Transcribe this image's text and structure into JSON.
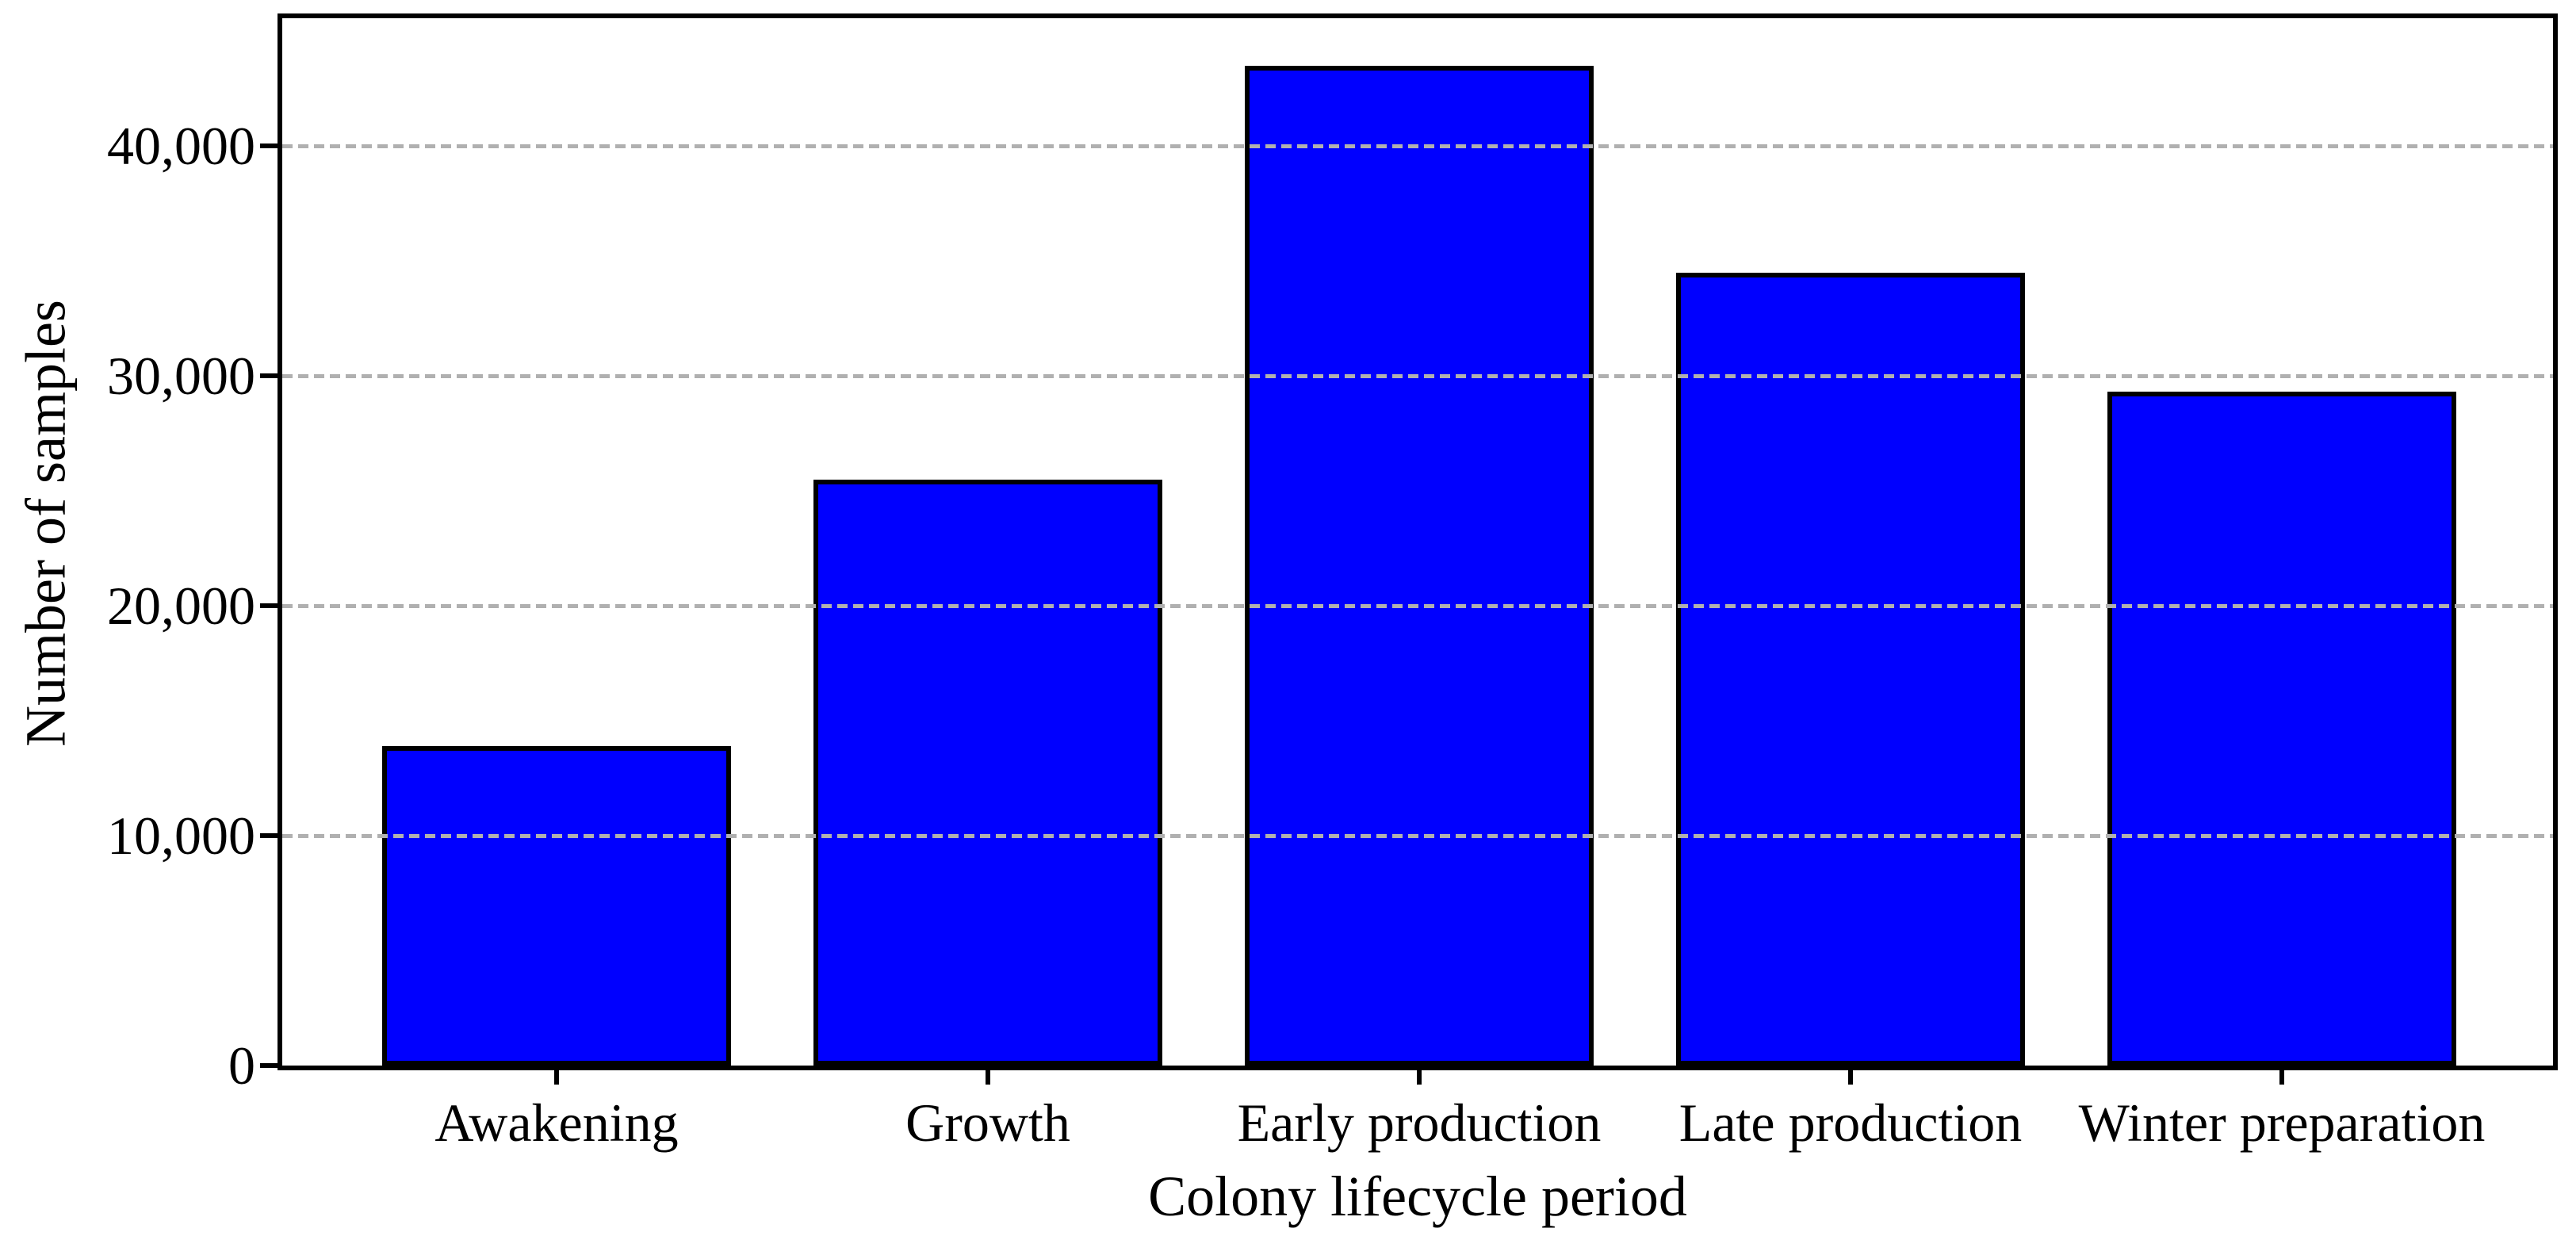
{
  "chart_data": {
    "type": "bar",
    "title": "",
    "categories": [
      "Awakening",
      "Growth",
      "Early production",
      "Late production",
      "Winter preparation"
    ],
    "values": [
      13900,
      25500,
      43500,
      34500,
      29300
    ],
    "xlabel": "Colony lifecycle period",
    "ylabel": "Number of samples",
    "yticks": [
      {
        "value": 0,
        "label": "0"
      },
      {
        "value": 10000,
        "label": "10,000"
      },
      {
        "value": 20000,
        "label": "20,000"
      },
      {
        "value": 30000,
        "label": "30,000"
      },
      {
        "value": 40000,
        "label": "40,000"
      }
    ],
    "ylim": [
      0,
      45560
    ],
    "legend": "none",
    "grid": {
      "axis": "y",
      "style": "dashed",
      "on_top_of_bars": true
    },
    "colors": {
      "bar_fill": "#0000ff",
      "bar_edge": "#000000",
      "gridline": "#b0b0b0",
      "axis_frame": "#000000",
      "text": "#000000",
      "background": "#ffffff"
    }
  }
}
